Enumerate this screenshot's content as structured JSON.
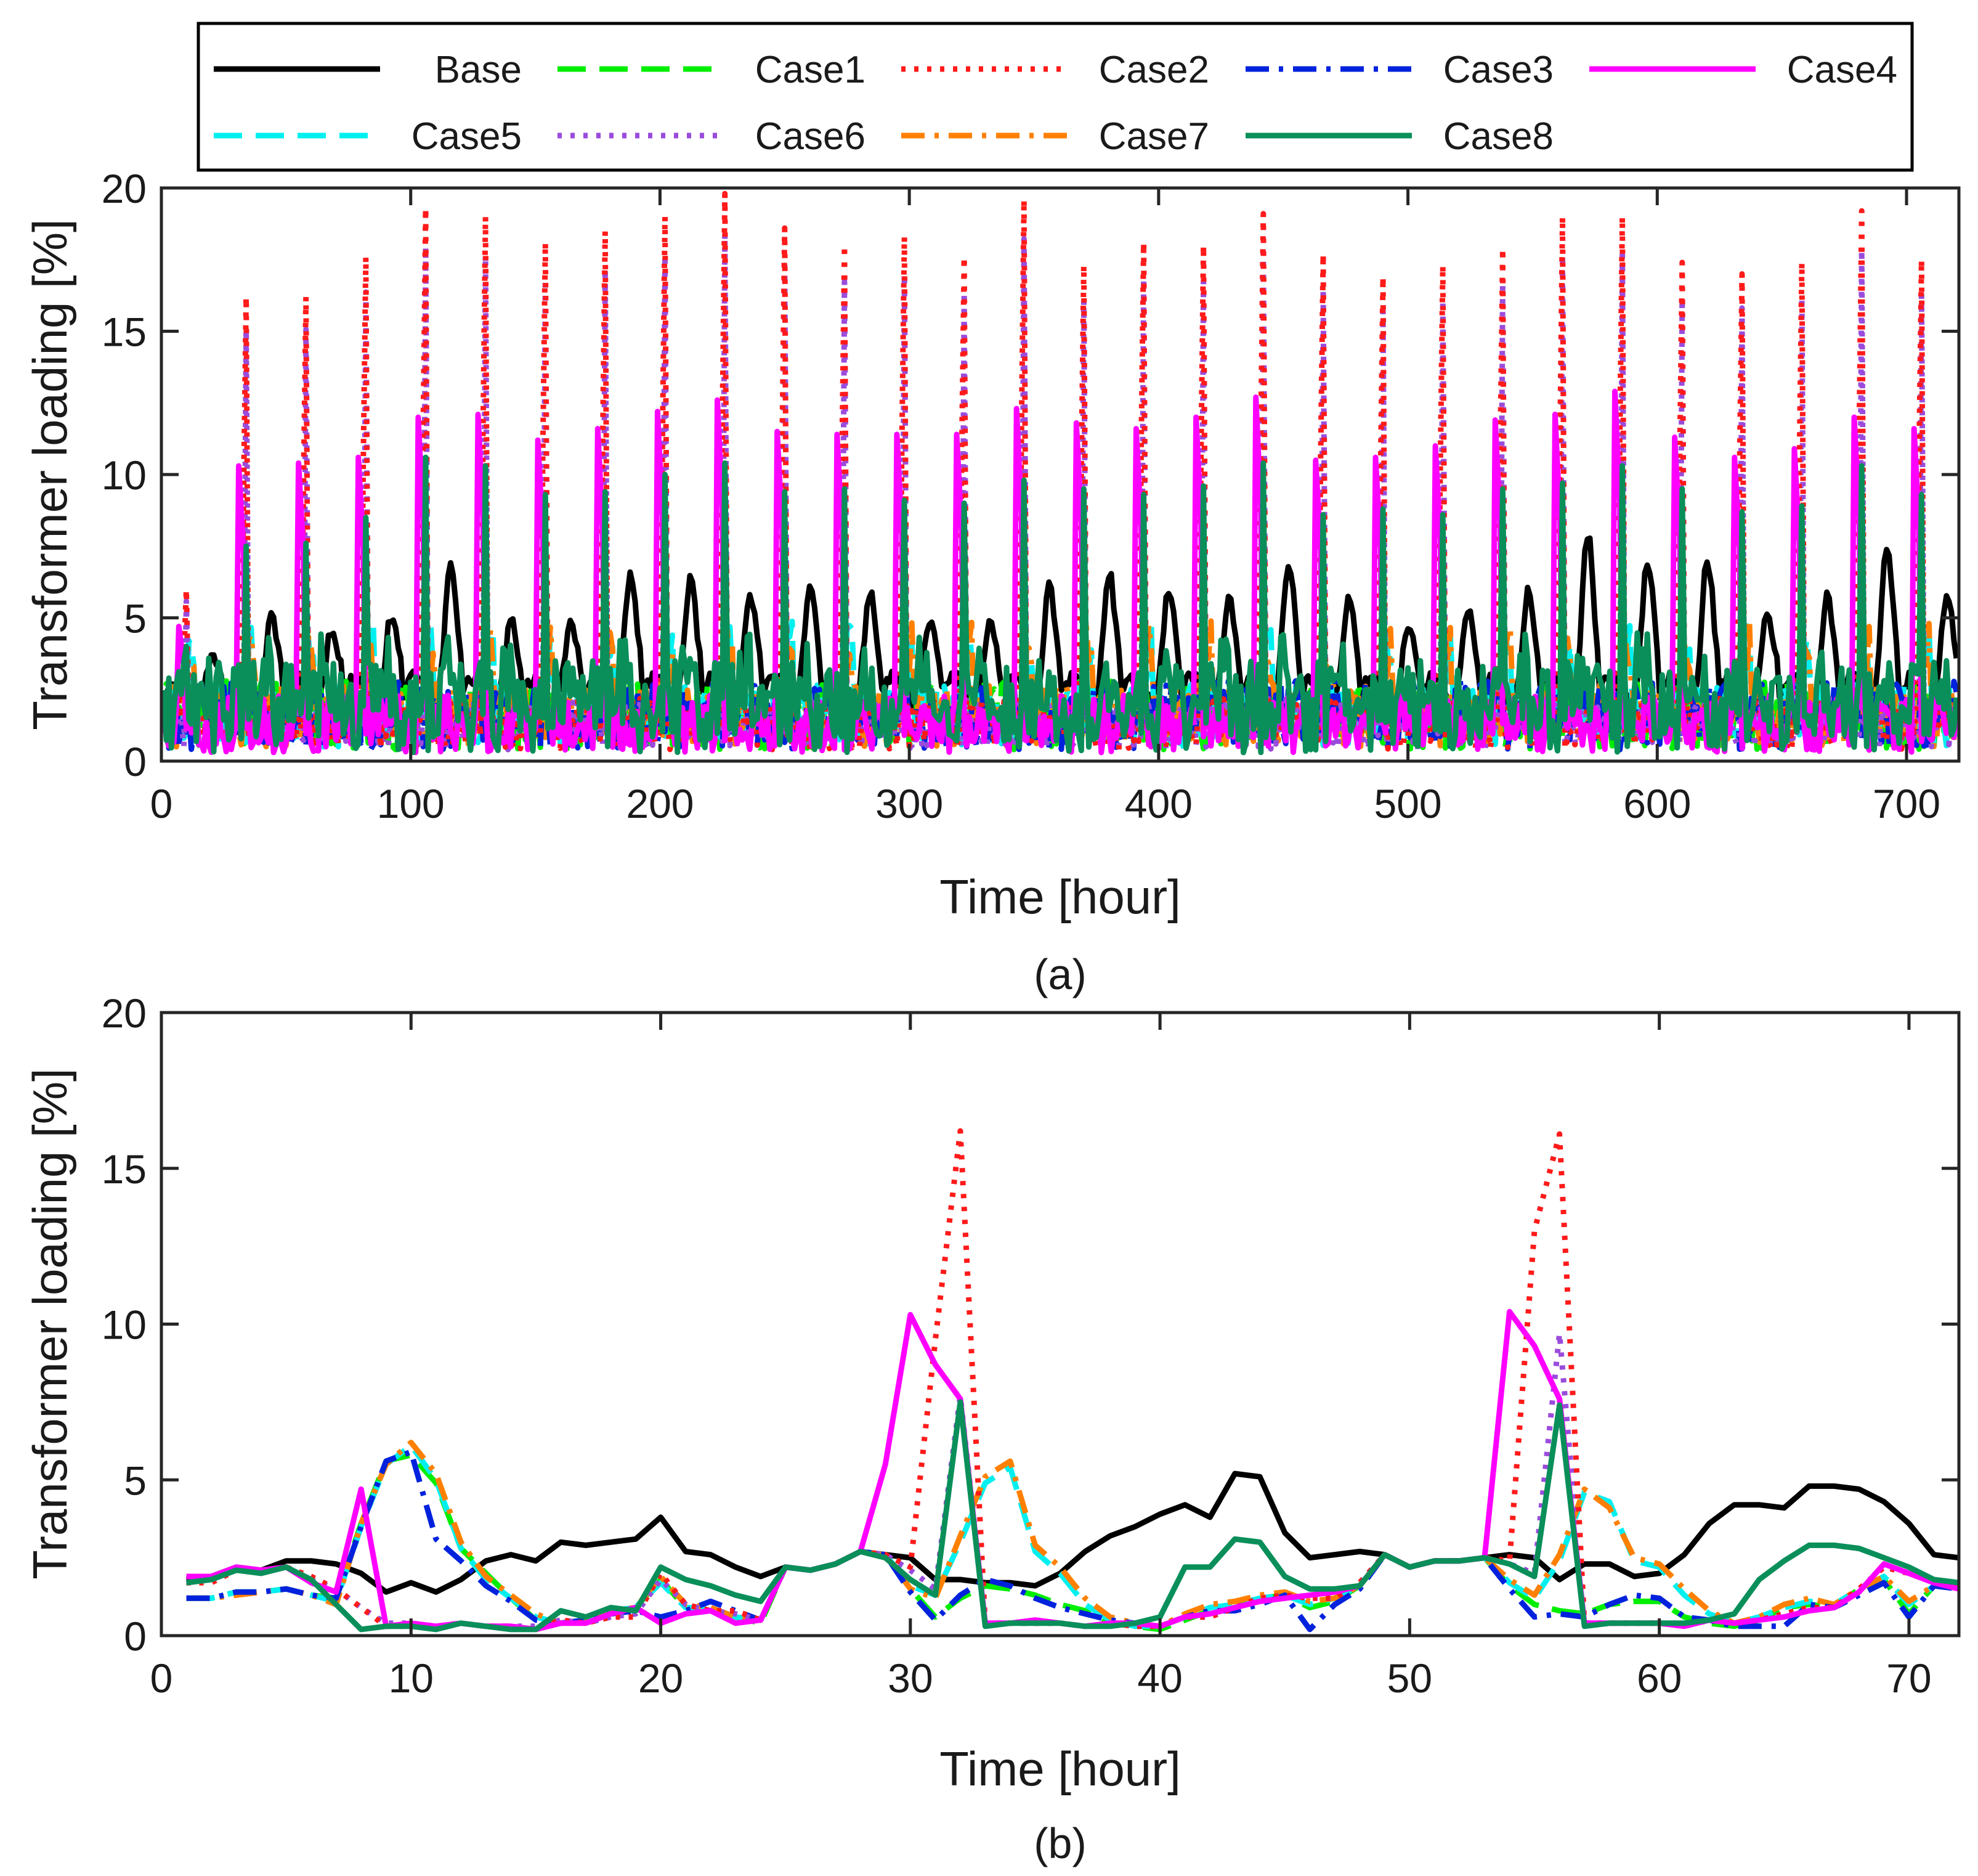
{
  "legend": {
    "entries": [
      {
        "name": "Base",
        "color": "#000000",
        "dash": "solid"
      },
      {
        "name": "Case1",
        "color": "#00ee00",
        "dash": "dashed"
      },
      {
        "name": "Case2",
        "color": "#ff1a1a",
        "dash": "dotted"
      },
      {
        "name": "Case3",
        "color": "#0022dd",
        "dash": "dashdot"
      },
      {
        "name": "Case4",
        "color": "#ff00ff",
        "dash": "solid"
      },
      {
        "name": "Case5",
        "color": "#00f0f0",
        "dash": "dashed"
      },
      {
        "name": "Case6",
        "color": "#9a4bdc",
        "dash": "dotted"
      },
      {
        "name": "Case7",
        "color": "#ff8000",
        "dash": "dashdot"
      },
      {
        "name": "Case8",
        "color": "#0a8f5a",
        "dash": "solid"
      }
    ]
  },
  "chart_data": [
    {
      "type": "line",
      "panel": "(a)",
      "xlabel": "Time [hour]",
      "ylabel": "Transformer loading [%]",
      "xlim": [
        0,
        721
      ],
      "ylim": [
        0,
        20
      ],
      "xticks": [
        0,
        100,
        200,
        300,
        400,
        500,
        600,
        700
      ],
      "yticks": [
        0,
        5,
        10,
        15,
        20
      ],
      "daily_peaks": {
        "description": "approximate daily peak loading values read from panel (a), one per day (30 days)",
        "day_centers_hour": [
          8,
          32,
          56,
          80,
          104,
          128,
          152,
          176,
          200,
          224,
          248,
          272,
          296,
          320,
          344,
          368,
          392,
          416,
          440,
          464,
          488,
          512,
          536,
          560,
          584,
          608,
          632,
          656,
          680,
          704
        ],
        "Case2": [
          6.0,
          16.2,
          16.2,
          17.6,
          19.3,
          19.0,
          18.1,
          18.5,
          19.0,
          19.8,
          18.6,
          18.0,
          18.3,
          17.6,
          19.6,
          17.3,
          18.1,
          18.0,
          19.1,
          17.7,
          16.9,
          17.3,
          17.9,
          19.0,
          19.0,
          17.4,
          17.0,
          17.4,
          19.2,
          17.5
        ],
        "Case4": [
          4.7,
          10.3,
          10.4,
          10.6,
          12.0,
          12.1,
          11.2,
          11.6,
          12.2,
          12.6,
          11.5,
          11.4,
          11.4,
          11.4,
          12.3,
          11.8,
          11.6,
          12.0,
          12.7,
          10.5,
          10.6,
          11.0,
          11.9,
          12.1,
          12.9,
          11.3,
          10.6,
          10.9,
          12.0,
          11.6
        ],
        "Case8": [
          4.0,
          7.5,
          7.6,
          8.5,
          10.6,
          10.3,
          9.3,
          9.4,
          10.0,
          10.4,
          9.4,
          9.5,
          9.1,
          9.0,
          9.8,
          9.5,
          9.3,
          9.6,
          10.4,
          8.6,
          8.8,
          8.6,
          9.5,
          9.7,
          10.3,
          9.5,
          8.7,
          8.9,
          10.3,
          9.3
        ],
        "Base": [
          3.8,
          5.2,
          4.8,
          5.2,
          7.1,
          5.0,
          5.0,
          6.7,
          6.4,
          6.0,
          6.4,
          6.0,
          5.0,
          5.0,
          6.2,
          6.7,
          6.2,
          5.9,
          7.1,
          5.9,
          4.9,
          5.4,
          6.0,
          8.1,
          7.2,
          7.2,
          5.3,
          5.9,
          7.6,
          6.0
        ]
      }
    },
    {
      "type": "line",
      "panel": "(b)",
      "xlabel": "Time [hour]",
      "ylabel": "Transformer loading [%]",
      "xlim": [
        0,
        72
      ],
      "ylim": [
        0,
        20
      ],
      "xticks": [
        0,
        10,
        20,
        30,
        40,
        50,
        60,
        70
      ],
      "yticks": [
        0,
        5,
        10,
        15,
        20
      ],
      "x": [
        1,
        2,
        3,
        4,
        5,
        6,
        7,
        8,
        9,
        10,
        11,
        12,
        13,
        14,
        15,
        16,
        17,
        18,
        19,
        20,
        21,
        22,
        23,
        24,
        25,
        26,
        27,
        28,
        29,
        30,
        31,
        32,
        33,
        34,
        35,
        36,
        37,
        38,
        39,
        40,
        41,
        42,
        43,
        44,
        45,
        46,
        47,
        48,
        49,
        50,
        51,
        52,
        53,
        54,
        55,
        56,
        57,
        58,
        59,
        60,
        61,
        62,
        63,
        64,
        65,
        66,
        67,
        68,
        69,
        70,
        71,
        72
      ],
      "series": [
        {
          "name": "Base",
          "values": [
            1.8,
            1.9,
            2.2,
            2.1,
            2.4,
            2.4,
            2.3,
            2.0,
            1.4,
            1.7,
            1.4,
            1.8,
            2.4,
            2.6,
            2.4,
            3.0,
            2.9,
            3.0,
            3.1,
            3.8,
            2.7,
            2.6,
            2.2,
            1.9,
            2.2,
            2.1,
            2.3,
            2.7,
            2.6,
            2.5,
            1.8,
            1.8,
            1.7,
            1.7,
            1.6,
            2.0,
            2.7,
            3.2,
            3.5,
            3.9,
            4.2,
            3.8,
            5.2,
            5.1,
            3.3,
            2.5,
            2.6,
            2.7,
            2.6,
            2.2,
            2.4,
            2.4,
            2.5,
            2.6,
            2.5,
            1.8,
            2.3,
            2.3,
            1.9,
            2.0,
            2.6,
            3.6,
            4.2,
            4.2,
            4.1,
            4.8,
            4.8,
            4.7,
            4.3,
            3.6,
            2.6,
            2.5
          ]
        },
        {
          "name": "Case1",
          "values": [
            1.2,
            1.2,
            1.4,
            1.4,
            1.5,
            1.3,
            1.2,
            3.6,
            5.6,
            5.8,
            4.9,
            2.8,
            2.0,
            1.2,
            0.5,
            0.4,
            0.5,
            0.7,
            0.9,
            1.8,
            0.9,
            0.8,
            0.6,
            0.4,
            2.2,
            2.1,
            2.3,
            2.7,
            2.6,
            1.5,
            0.6,
            1.2,
            1.6,
            1.5,
            1.3,
            1.0,
            0.8,
            0.4,
            0.3,
            0.2,
            0.5,
            0.8,
            0.9,
            1.2,
            1.3,
            0.9,
            1.1,
            1.6,
            2.6,
            2.2,
            2.4,
            2.4,
            2.5,
            1.6,
            1.0,
            0.8,
            0.7,
            1.0,
            1.1,
            1.1,
            0.6,
            0.4,
            0.3,
            0.5,
            0.9,
            1.0,
            0.9,
            1.5,
            1.8,
            0.7,
            1.6,
            1.6
          ]
        },
        {
          "name": "Case2",
          "values": [
            1.7,
            1.7,
            2.1,
            2.1,
            2.2,
            1.9,
            1.5,
            0.9,
            0.3,
            0.3,
            0.3,
            0.4,
            0.3,
            0.3,
            0.2,
            0.5,
            0.4,
            0.6,
            0.6,
            2.0,
            1.0,
            0.8,
            0.8,
            0.5,
            2.2,
            2.1,
            2.3,
            2.7,
            2.6,
            2.2,
            9.5,
            16.2,
            0.4,
            0.4,
            0.4,
            0.4,
            0.3,
            0.4,
            0.3,
            0.3,
            0.6,
            0.6,
            0.9,
            1.2,
            1.3,
            1.2,
            1.2,
            1.7,
            2.6,
            2.2,
            2.4,
            2.4,
            2.5,
            2.4,
            13.0,
            16.1,
            0.4,
            0.4,
            0.4,
            0.4,
            0.3,
            0.5,
            0.4,
            0.5,
            0.7,
            0.9,
            0.9,
            1.5,
            2.2,
            2.0,
            1.7,
            1.6
          ]
        },
        {
          "name": "Case3",
          "values": [
            1.2,
            1.2,
            1.4,
            1.4,
            1.5,
            1.3,
            1.2,
            3.5,
            5.6,
            5.9,
            3.1,
            2.4,
            1.6,
            1.1,
            0.5,
            0.4,
            0.5,
            0.7,
            0.8,
            0.6,
            0.8,
            1.1,
            0.8,
            0.5,
            2.2,
            2.1,
            2.3,
            2.7,
            2.6,
            1.4,
            0.5,
            1.3,
            1.8,
            1.6,
            1.2,
            0.9,
            0.7,
            0.5,
            0.4,
            0.3,
            0.6,
            0.8,
            0.8,
            1.0,
            1.3,
            0.2,
            1.0,
            1.5,
            2.6,
            2.2,
            2.4,
            2.4,
            2.5,
            1.5,
            0.6,
            0.7,
            0.6,
            1.0,
            1.3,
            1.2,
            0.6,
            0.5,
            0.3,
            0.3,
            0.3,
            1.0,
            0.9,
            1.3,
            1.7,
            0.6,
            1.6,
            1.5
          ]
        },
        {
          "name": "Case4",
          "values": [
            1.9,
            1.9,
            2.2,
            2.1,
            2.2,
            1.7,
            1.4,
            4.7,
            0.3,
            0.4,
            0.3,
            0.4,
            0.3,
            0.3,
            0.2,
            0.4,
            0.4,
            0.7,
            0.9,
            0.4,
            0.7,
            0.8,
            0.4,
            0.5,
            2.2,
            2.1,
            2.3,
            2.7,
            5.5,
            10.3,
            8.7,
            7.6,
            0.4,
            0.4,
            0.5,
            0.4,
            0.3,
            0.4,
            0.4,
            0.3,
            0.6,
            0.7,
            0.9,
            1.1,
            1.2,
            1.3,
            1.4,
            1.6,
            2.6,
            2.2,
            2.4,
            2.4,
            2.5,
            10.4,
            9.3,
            7.6,
            0.4,
            0.4,
            0.4,
            0.4,
            0.3,
            0.5,
            0.4,
            0.5,
            0.6,
            0.8,
            0.9,
            1.4,
            2.3,
            2.0,
            1.7,
            1.5
          ]
        },
        {
          "name": "Case5",
          "values": [
            1.2,
            1.2,
            1.4,
            1.4,
            1.5,
            1.3,
            1.1,
            3.5,
            5.5,
            6.1,
            5.0,
            2.8,
            1.8,
            1.2,
            0.6,
            0.4,
            0.5,
            0.8,
            0.9,
            1.7,
            0.9,
            0.9,
            0.6,
            0.5,
            2.2,
            2.1,
            2.3,
            2.7,
            2.6,
            1.6,
            1.3,
            3.0,
            4.9,
            5.4,
            2.7,
            2.0,
            1.0,
            0.5,
            0.3,
            0.3,
            0.6,
            0.9,
            1.0,
            1.2,
            1.3,
            1.0,
            1.2,
            1.6,
            2.6,
            2.2,
            2.4,
            2.4,
            2.5,
            1.7,
            1.2,
            2.4,
            4.6,
            4.3,
            2.4,
            2.2,
            1.3,
            0.7,
            0.4,
            0.6,
            0.9,
            1.1,
            1.0,
            1.5,
            1.9,
            1.0,
            1.6,
            1.6
          ]
        },
        {
          "name": "Case6",
          "values": [
            1.7,
            1.8,
            2.1,
            2.1,
            2.2,
            1.8,
            1.5,
            0.9,
            0.4,
            0.4,
            0.3,
            0.4,
            0.3,
            0.3,
            0.3,
            0.5,
            0.4,
            0.6,
            0.7,
            1.8,
            1.0,
            0.8,
            0.7,
            0.5,
            2.2,
            2.1,
            2.3,
            2.7,
            2.6,
            2.1,
            1.5,
            7.7,
            0.4,
            0.4,
            0.4,
            0.4,
            0.3,
            0.4,
            0.3,
            0.3,
            0.6,
            0.6,
            0.9,
            1.2,
            1.3,
            1.2,
            1.2,
            1.7,
            2.6,
            2.2,
            2.4,
            2.4,
            2.5,
            2.3,
            2.0,
            9.7,
            0.4,
            0.4,
            0.4,
            0.4,
            0.3,
            0.5,
            0.4,
            0.5,
            0.7,
            0.9,
            0.9,
            1.5,
            2.2,
            2.0,
            1.7,
            1.6
          ]
        },
        {
          "name": "Case7",
          "values": [
            1.2,
            1.2,
            1.3,
            1.4,
            1.5,
            1.3,
            1.0,
            3.6,
            5.5,
            6.2,
            5.2,
            3.0,
            1.9,
            1.3,
            0.7,
            0.4,
            0.5,
            0.8,
            0.9,
            1.9,
            1.0,
            0.9,
            0.6,
            0.5,
            2.2,
            2.1,
            2.3,
            2.7,
            2.6,
            1.5,
            1.2,
            3.2,
            5.1,
            5.6,
            2.9,
            2.2,
            1.2,
            0.6,
            0.4,
            0.3,
            0.7,
            1.0,
            1.1,
            1.3,
            1.4,
            1.1,
            1.2,
            1.6,
            2.6,
            2.2,
            2.4,
            2.4,
            2.5,
            1.8,
            1.3,
            2.6,
            4.7,
            4.1,
            2.5,
            2.3,
            1.5,
            0.8,
            0.4,
            0.6,
            1.0,
            1.2,
            1.0,
            1.5,
            1.9,
            1.1,
            1.6,
            1.6
          ]
        },
        {
          "name": "Case8",
          "values": [
            1.7,
            1.8,
            2.1,
            2.0,
            2.2,
            1.8,
            1.0,
            0.2,
            0.3,
            0.3,
            0.2,
            0.4,
            0.3,
            0.2,
            0.2,
            0.8,
            0.6,
            0.9,
            0.8,
            2.2,
            1.8,
            1.6,
            1.3,
            1.1,
            2.2,
            2.1,
            2.3,
            2.7,
            2.5,
            1.8,
            1.3,
            7.5,
            0.3,
            0.4,
            0.4,
            0.4,
            0.3,
            0.3,
            0.4,
            0.6,
            2.2,
            2.2,
            3.1,
            3.0,
            1.9,
            1.5,
            1.5,
            1.6,
            2.6,
            2.2,
            2.4,
            2.4,
            2.5,
            2.3,
            1.9,
            7.4,
            0.3,
            0.4,
            0.4,
            0.4,
            0.4,
            0.5,
            0.7,
            1.8,
            2.4,
            2.9,
            2.9,
            2.8,
            2.5,
            2.2,
            1.8,
            1.7
          ]
        }
      ]
    }
  ]
}
